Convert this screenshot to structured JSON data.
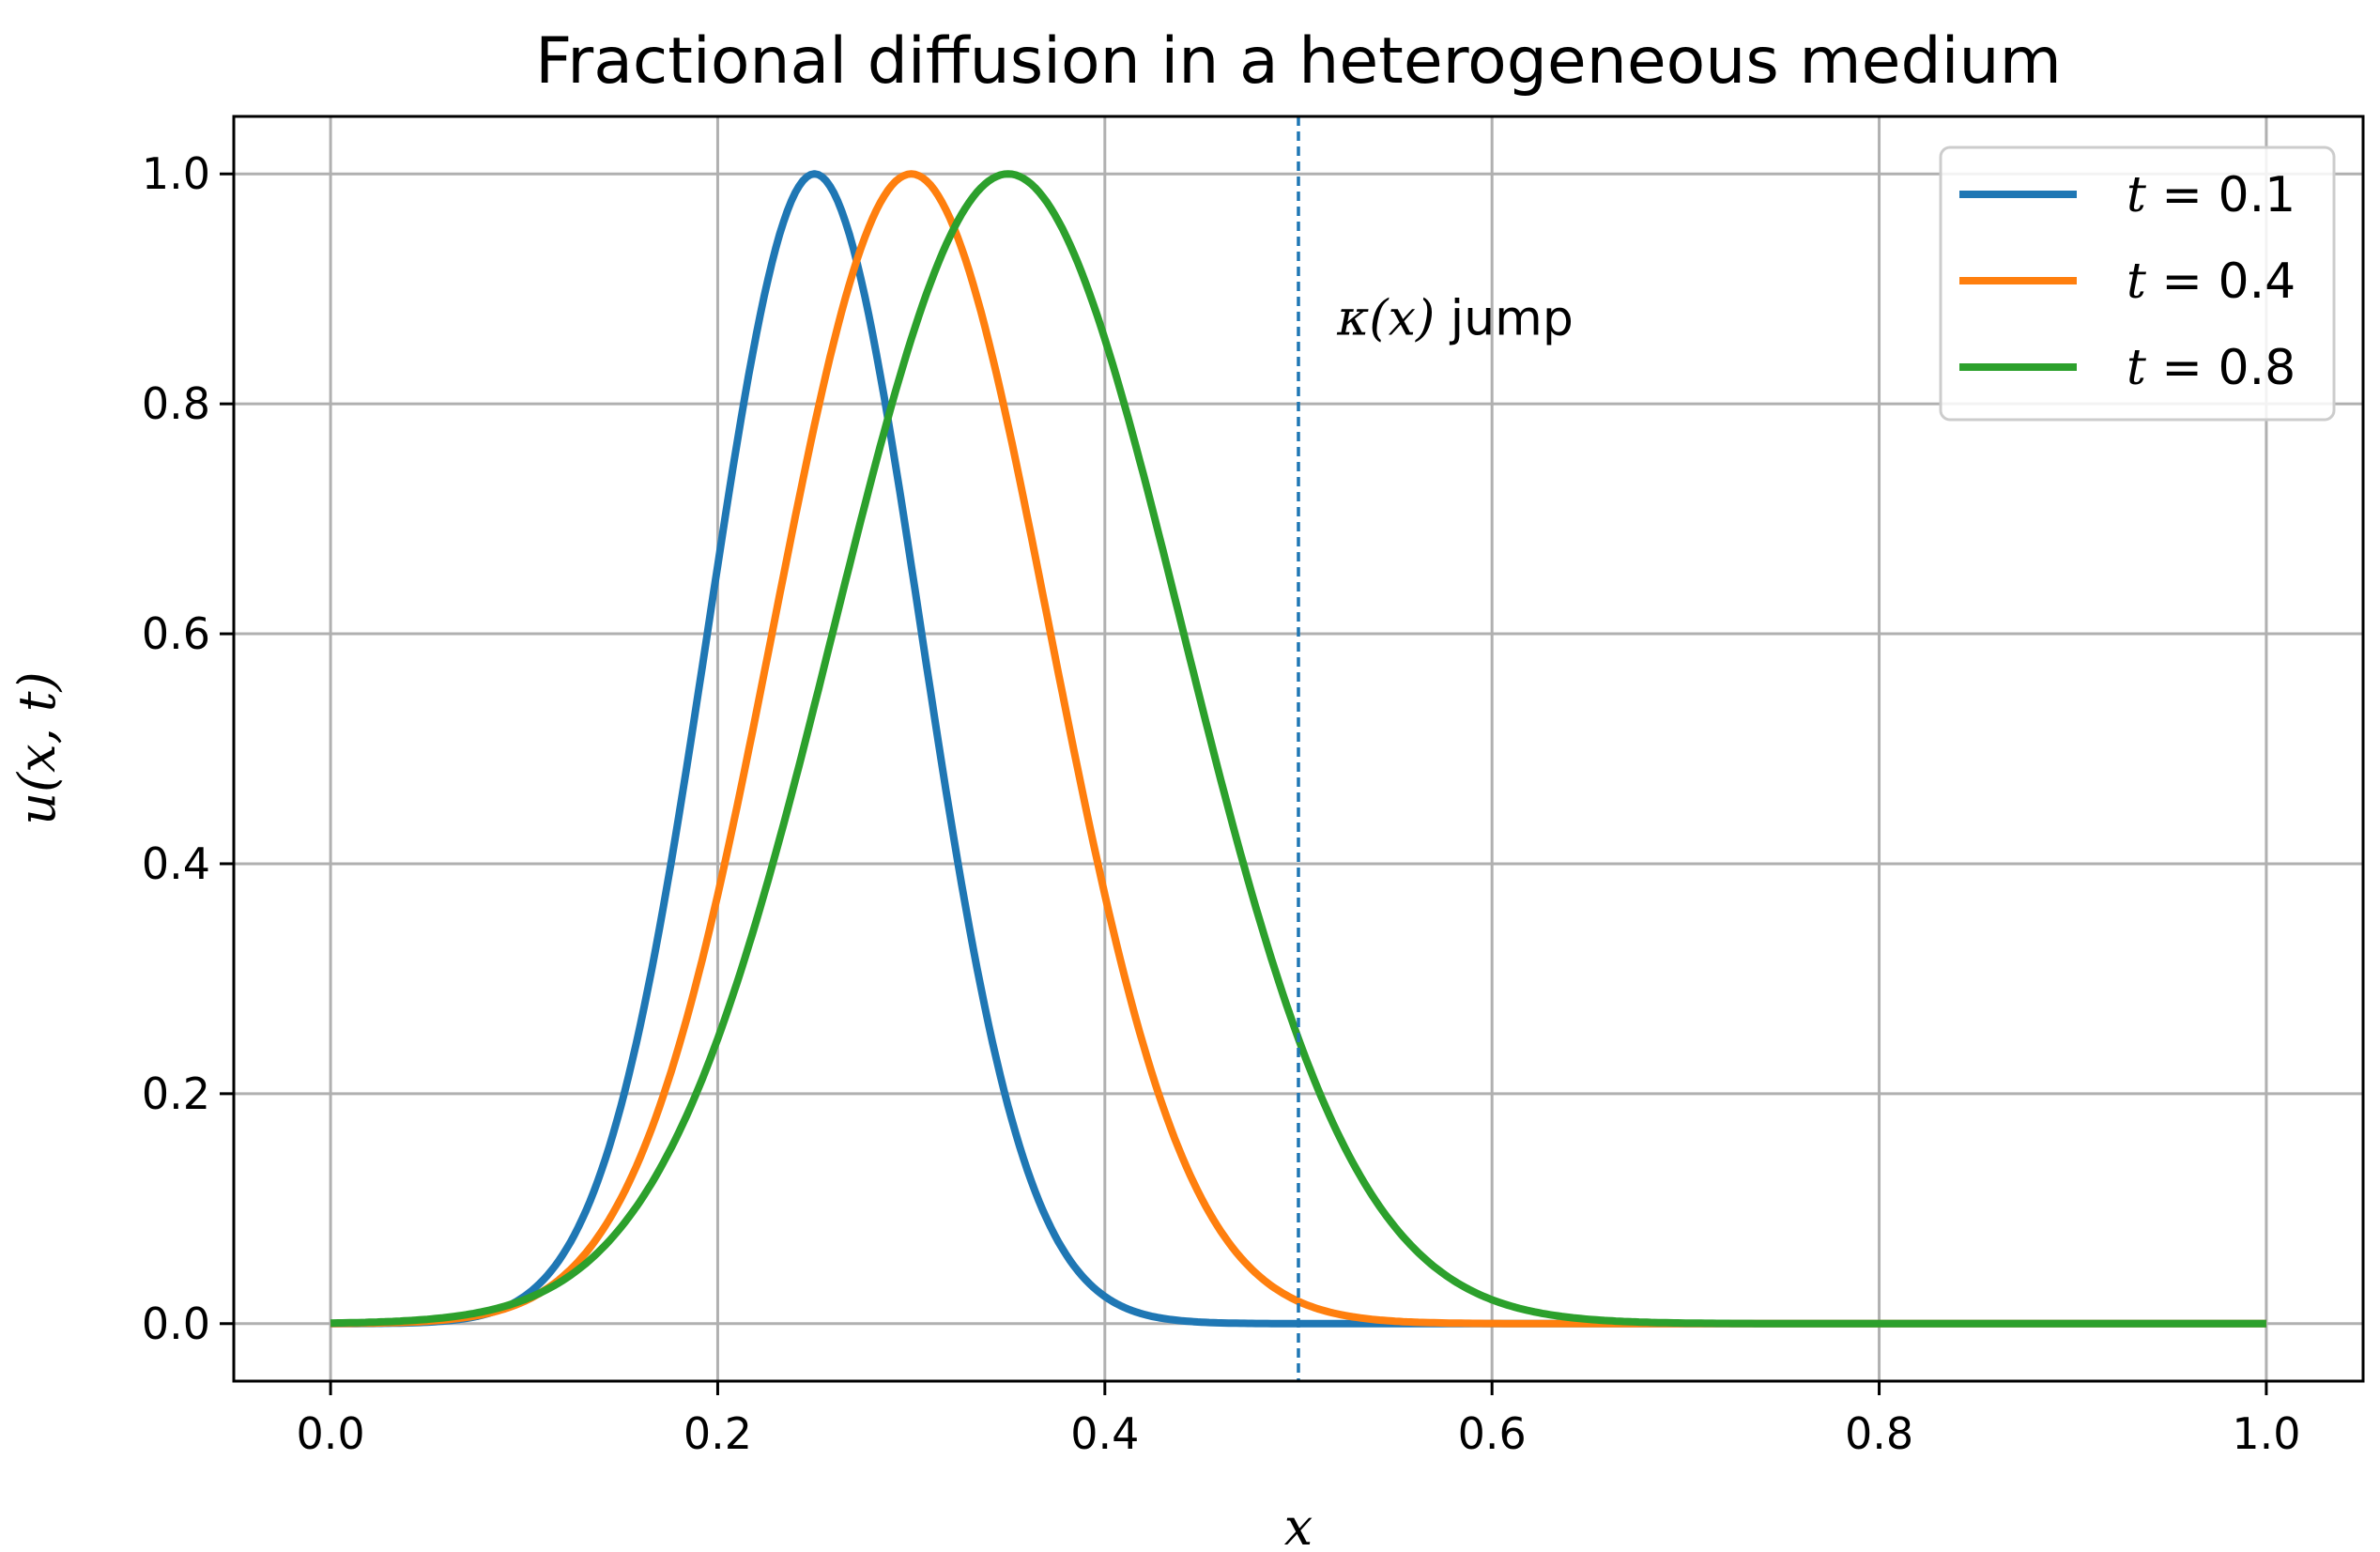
{
  "chart_data": {
    "type": "line",
    "title": "Fractional diffusion in a heterogeneous medium",
    "xlabel": "x",
    "ylabel": "u(x, t)",
    "xlim": [
      -0.05,
      1.05
    ],
    "ylim": [
      -0.05,
      1.05
    ],
    "xticks": [
      0.0,
      0.2,
      0.4,
      0.6,
      0.8,
      1.0
    ],
    "xtick_labels": [
      "0.0",
      "0.2",
      "0.4",
      "0.6",
      "0.8",
      "1.0"
    ],
    "yticks": [
      0.0,
      0.2,
      0.4,
      0.6,
      0.8,
      1.0
    ],
    "ytick_labels": [
      "0.0",
      "0.2",
      "0.4",
      "0.6",
      "0.8",
      "1.0"
    ],
    "grid": true,
    "legend_position": "top-right",
    "series": [
      {
        "name": "t = 0.1",
        "legend_var": "t",
        "legend_value": "= 0.1",
        "color": "#1f77b4",
        "center": 0.25,
        "width": 0.0775
      },
      {
        "name": "t = 0.4",
        "legend_var": "t",
        "legend_value": "= 0.4",
        "color": "#ff7f0e",
        "center": 0.3,
        "width": 0.1007
      },
      {
        "name": "t = 0.8",
        "legend_var": "t",
        "legend_value": "= 0.8",
        "color": "#2ca02c",
        "center": 0.35,
        "width": 0.127
      }
    ],
    "vline": {
      "x": 0.5,
      "color": "#1f77b4",
      "style": "dashed"
    },
    "annotation": {
      "text_var": "κ(x)",
      "text_rest": " jump",
      "x": 0.52,
      "y": 0.86
    }
  }
}
